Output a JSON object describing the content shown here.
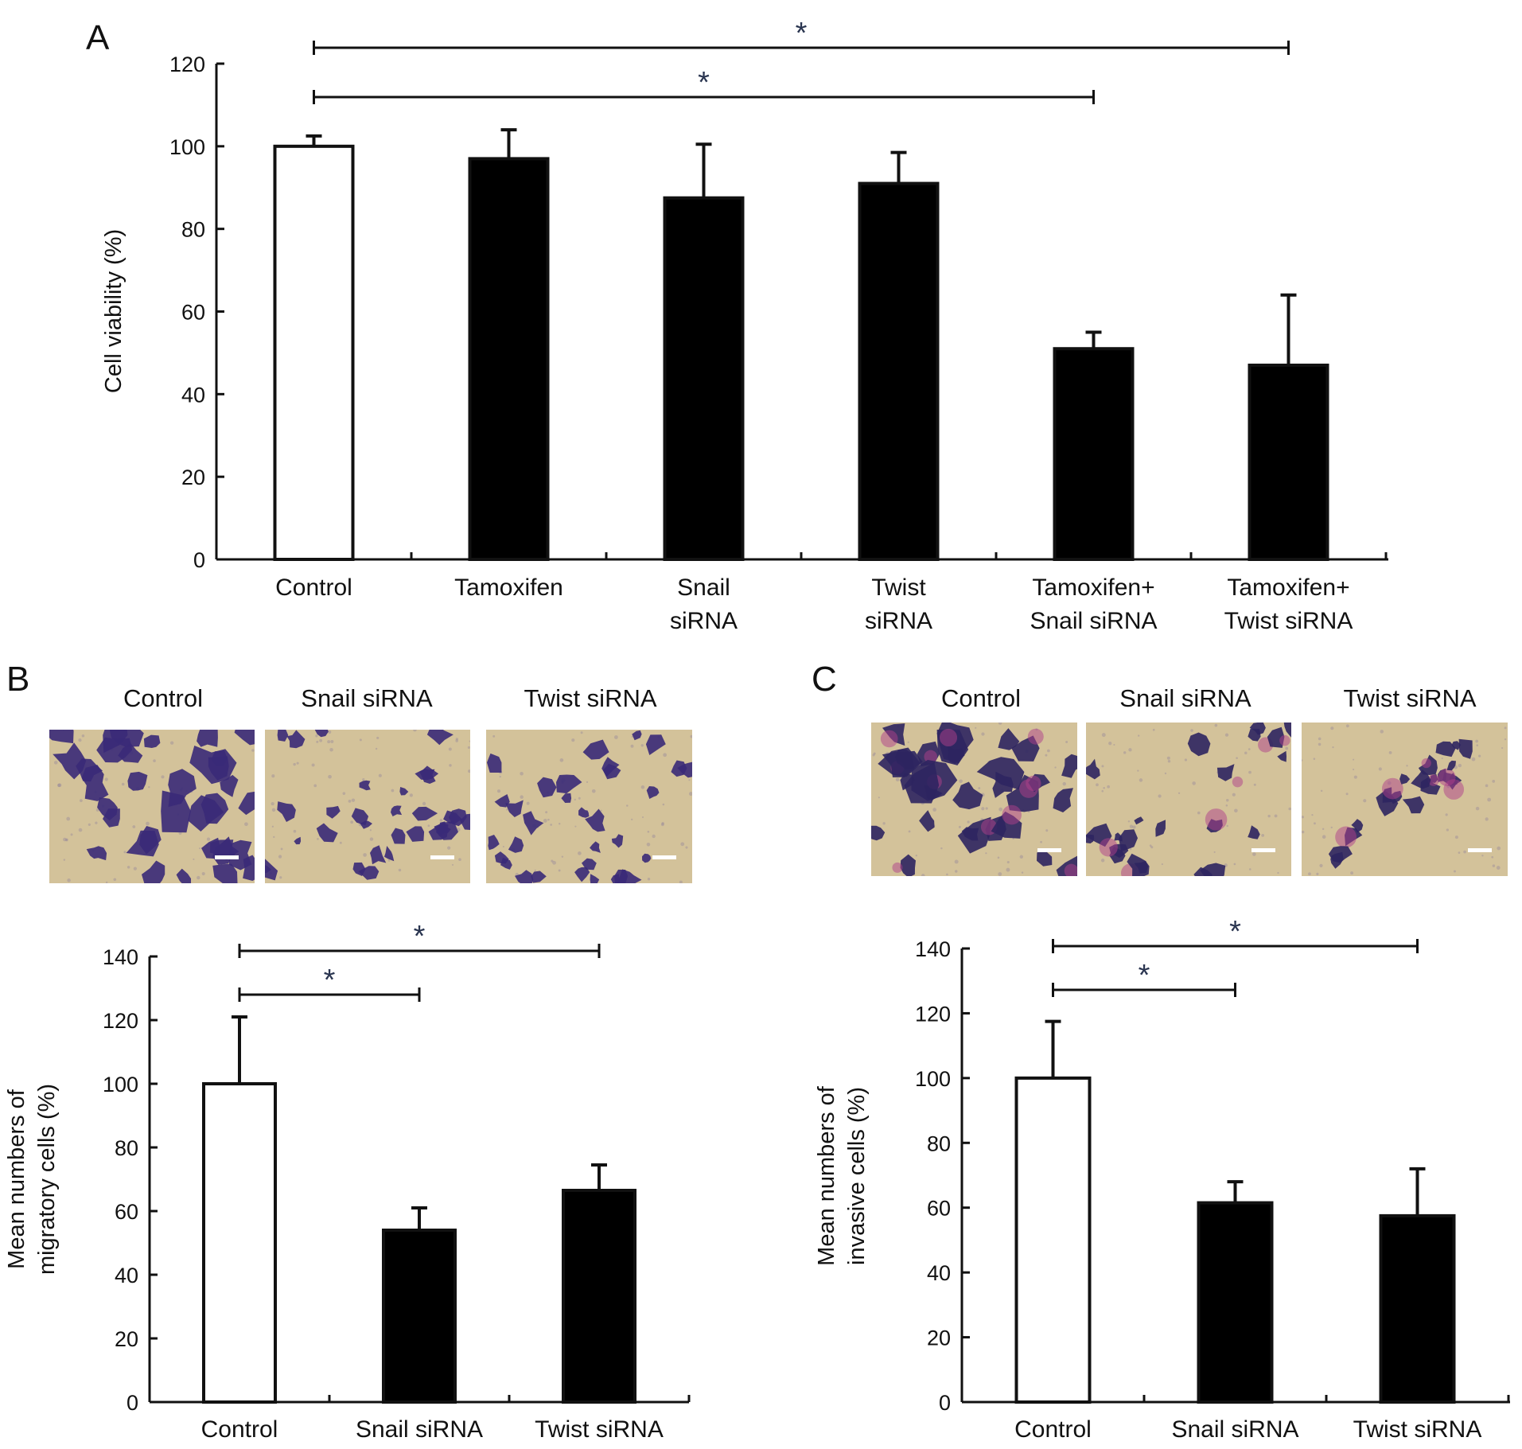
{
  "colors": {
    "axis": "#111111",
    "control_bar_fill": "#ffffff",
    "treated_bar_fill": "#000000",
    "significance_marker": "#2a3550",
    "micrograph_background": "#d3c29a",
    "migration_cells": "#3a2a78",
    "invasion_cells": "#2e2560",
    "invasion_stain_magenta": "#b0408a"
  },
  "panels": {
    "A": {
      "letter": "A",
      "chart_data": {
        "type": "bar",
        "categories": [
          "Control",
          "Tamoxifen",
          "Snail siRNA",
          "Twist siRNA",
          "Tamoxifen+ Snail siRNA",
          "Tamoxifen+ Twist siRNA"
        ],
        "category_lines": [
          [
            "Control"
          ],
          [
            "Tamoxifen"
          ],
          [
            "Snail",
            "siRNA"
          ],
          [
            "Twist",
            "siRNA"
          ],
          [
            "Tamoxifen+",
            "Snail siRNA"
          ],
          [
            "Tamoxifen+",
            "Twist siRNA"
          ]
        ],
        "values": [
          100,
          97,
          87.5,
          91,
          51,
          47
        ],
        "error": [
          2.5,
          7,
          13,
          7.5,
          4,
          17
        ],
        "bar_colors": [
          "#ffffff",
          "#000000",
          "#000000",
          "#000000",
          "#000000",
          "#000000"
        ],
        "title": "",
        "xlabel": "",
        "ylabel": "Cell viability (%)",
        "ylim": [
          0,
          120
        ],
        "yticks": [
          0,
          20,
          40,
          60,
          80,
          100,
          120
        ],
        "grid": false,
        "significance": [
          {
            "from": 0,
            "to": 4,
            "label": "*"
          },
          {
            "from": 0,
            "to": 5,
            "label": "*"
          }
        ]
      }
    },
    "B": {
      "letter": "B",
      "image_labels": [
        "Control",
        "Snail siRNA",
        "Twist siRNA"
      ],
      "chart_data": {
        "type": "bar",
        "categories": [
          "Control",
          "Snail siRNA",
          "Twist siRNA"
        ],
        "values": [
          100,
          54,
          66.5
        ],
        "error": [
          21,
          7,
          8
        ],
        "bar_colors": [
          "#ffffff",
          "#000000",
          "#000000"
        ],
        "title": "",
        "xlabel": "",
        "ylabel_lines": [
          "Mean numbers of",
          "migratory cells (%)"
        ],
        "ylim": [
          0,
          140
        ],
        "yticks": [
          0,
          20,
          40,
          60,
          80,
          100,
          120,
          140
        ],
        "grid": false,
        "significance": [
          {
            "from": 0,
            "to": 1,
            "label": "*"
          },
          {
            "from": 0,
            "to": 2,
            "label": "*"
          }
        ]
      }
    },
    "C": {
      "letter": "C",
      "image_labels": [
        "Control",
        "Snail siRNA",
        "Twist siRNA"
      ],
      "chart_data": {
        "type": "bar",
        "categories": [
          "Control",
          "Snail siRNA",
          "Twist siRNA"
        ],
        "values": [
          100,
          61.5,
          57.5
        ],
        "error": [
          17.5,
          6.5,
          14.5
        ],
        "bar_colors": [
          "#ffffff",
          "#000000",
          "#000000"
        ],
        "title": "",
        "xlabel": "",
        "ylabel_lines": [
          "Mean numbers of",
          "invasive cells (%)"
        ],
        "ylim": [
          0,
          140
        ],
        "yticks": [
          0,
          20,
          40,
          60,
          80,
          100,
          120,
          140
        ],
        "grid": false,
        "significance": [
          {
            "from": 0,
            "to": 1,
            "label": "*"
          },
          {
            "from": 0,
            "to": 2,
            "label": "*"
          }
        ]
      }
    }
  }
}
